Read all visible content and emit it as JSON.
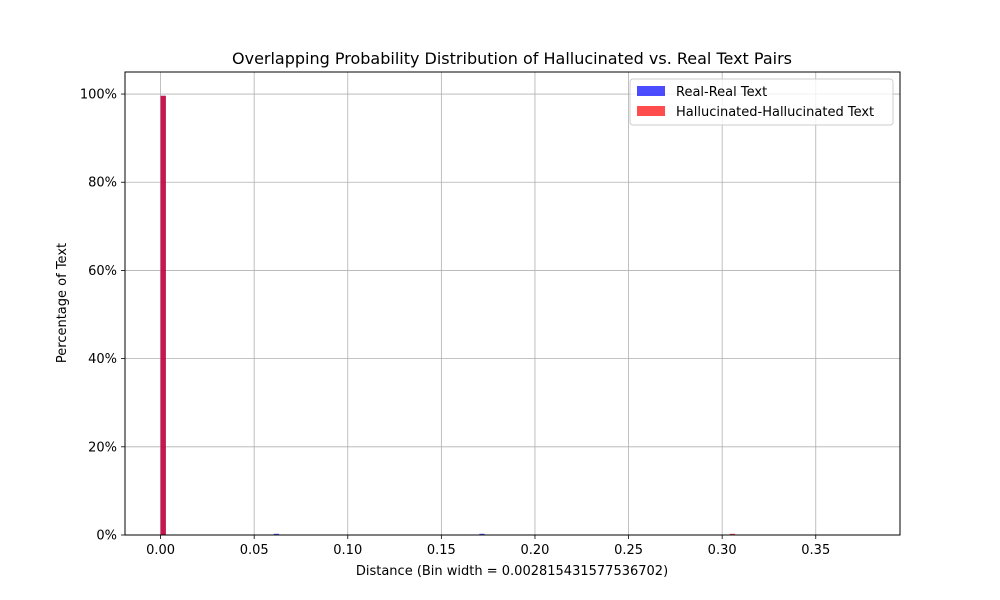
{
  "chart_data": {
    "type": "bar",
    "title": "Overlapping Probability Distribution of Hallucinated vs. Real Text Pairs",
    "xlabel": "Distance (Bin width = 0.002815431577536702)",
    "ylabel": "Percentage of Text",
    "xlim": [
      -0.019,
      0.395
    ],
    "ylim": [
      0,
      1.05
    ],
    "x_ticks": [
      {
        "value": 0.0,
        "label": "0.00"
      },
      {
        "value": 0.05,
        "label": "0.05"
      },
      {
        "value": 0.1,
        "label": "0.10"
      },
      {
        "value": 0.15,
        "label": "0.15"
      },
      {
        "value": 0.2,
        "label": "0.20"
      },
      {
        "value": 0.25,
        "label": "0.25"
      },
      {
        "value": 0.3,
        "label": "0.30"
      },
      {
        "value": 0.35,
        "label": "0.35"
      }
    ],
    "y_ticks": [
      {
        "value": 0.0,
        "label": "0%"
      },
      {
        "value": 0.2,
        "label": "20%"
      },
      {
        "value": 0.4,
        "label": "40%"
      },
      {
        "value": 0.6,
        "label": "60%"
      },
      {
        "value": 0.8,
        "label": "80%"
      },
      {
        "value": 1.0,
        "label": "100%"
      }
    ],
    "bin_width": 0.002815431577536702,
    "grid": true,
    "legend_position": "top-right",
    "series": [
      {
        "name": "Real-Real Text",
        "color": "#0000ff",
        "opacity": 0.7,
        "bins": [
          {
            "x": 0.0,
            "value": 0.996
          },
          {
            "x": 0.0605,
            "value": 0.002
          },
          {
            "x": 0.1703,
            "value": 0.002
          }
        ]
      },
      {
        "name": "Hallucinated-Hallucinated Text",
        "color": "#ff0000",
        "opacity": 0.7,
        "bins": [
          {
            "x": 0.0,
            "value": 0.996
          },
          {
            "x": 0.3041,
            "value": 0.002
          }
        ]
      }
    ]
  }
}
